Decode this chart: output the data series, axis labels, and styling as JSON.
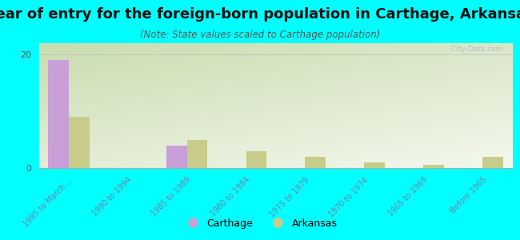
{
  "title": "Year of entry for the foreign-born population in Carthage, Arkansas",
  "subtitle": "(Note: State values scaled to Carthage population)",
  "categories": [
    "1995 to March ...",
    "1990 to 1994",
    "1985 to 1989",
    "1980 to 1984",
    "1975 to 1979",
    "1970 to 1974",
    "1965 to 1969",
    "Before 1965"
  ],
  "carthage_values": [
    19,
    0,
    4,
    0,
    0,
    0,
    0,
    0
  ],
  "arkansas_values": [
    9,
    0,
    5,
    3,
    2,
    1,
    0.5,
    2
  ],
  "carthage_color": "#c99fd8",
  "arkansas_color": "#c8cc8a",
  "ylim": [
    0,
    22
  ],
  "yticks": [
    0,
    20
  ],
  "background_color": "#00ffff",
  "bar_width": 0.35,
  "title_fontsize": 13,
  "subtitle_fontsize": 8.5,
  "watermark": "  City-Data.com"
}
